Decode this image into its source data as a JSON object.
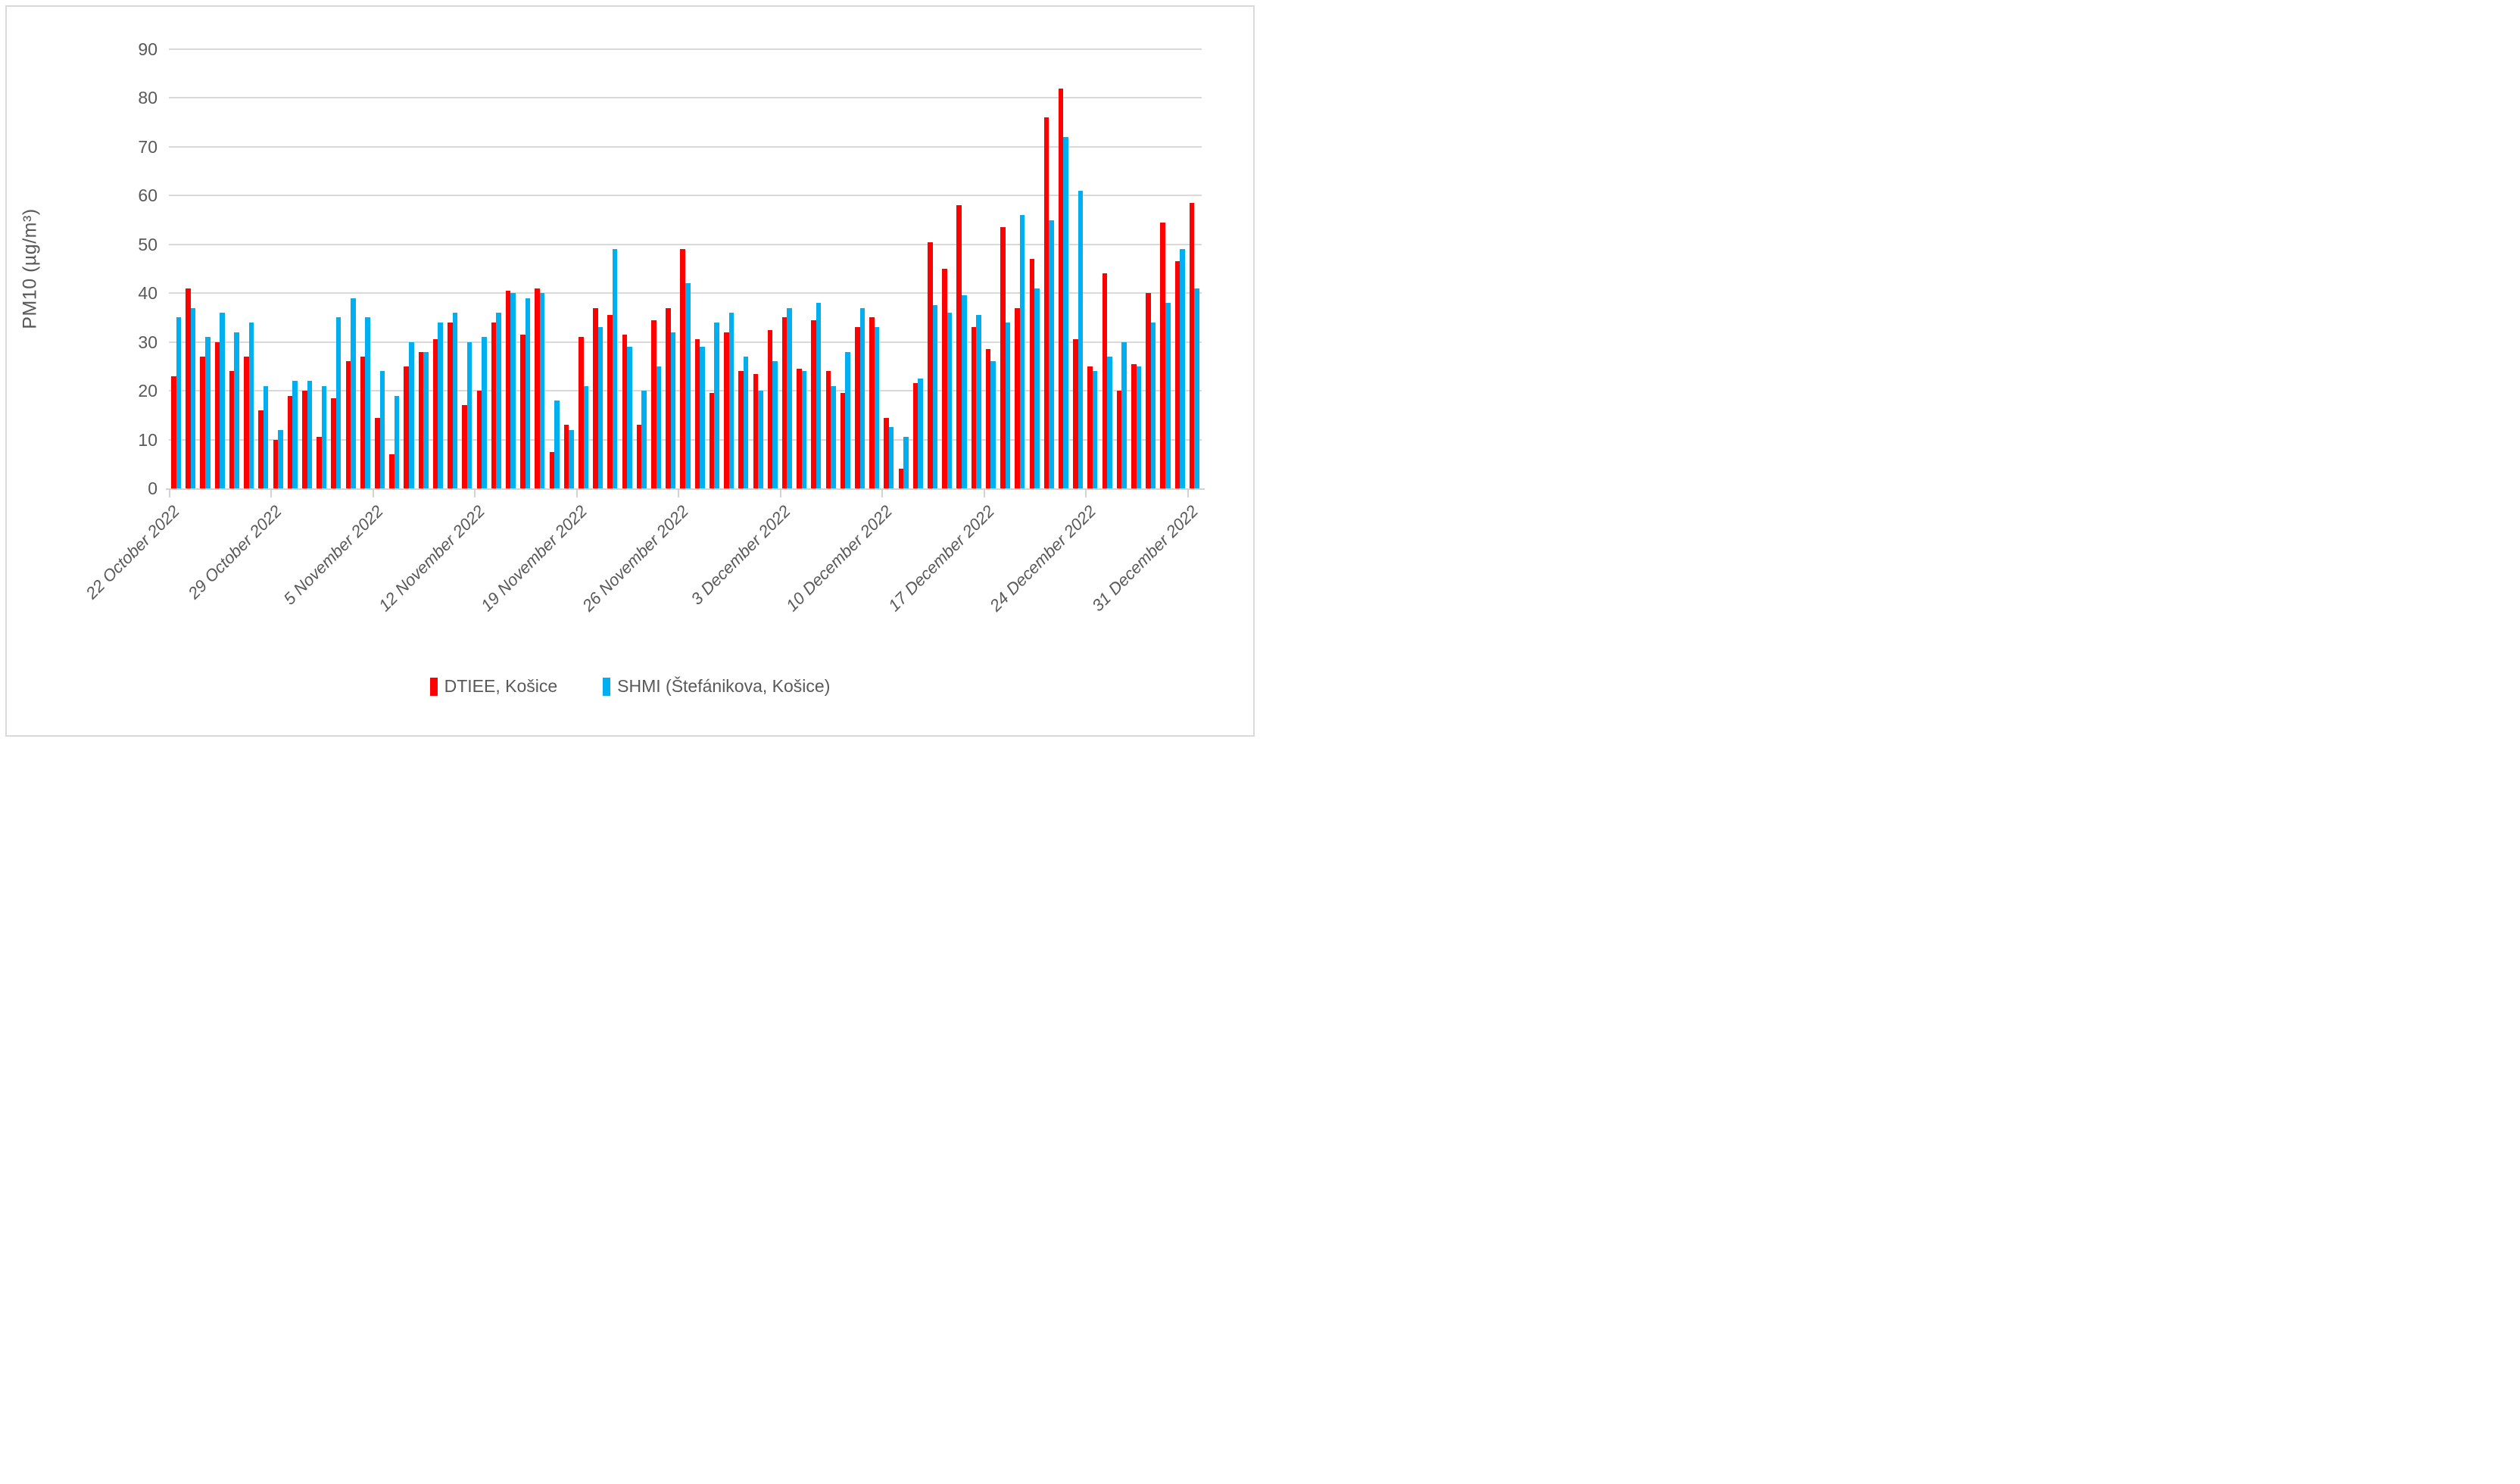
{
  "figure": {
    "background": "#ffffff",
    "border_color": "#d9d9d9",
    "gridline_color": "#d9d9d9",
    "axis_color": "#d2d2d2",
    "text_color": "#595959"
  },
  "chart_data": {
    "type": "bar",
    "title": "",
    "xlabel": "",
    "ylabel": "PM10 (µg/m³)",
    "ylim": [
      0,
      90
    ],
    "y_ticks": [
      0,
      10,
      20,
      30,
      40,
      50,
      60,
      70,
      80,
      90
    ],
    "grid": "horizontal",
    "legend_position": "bottom-center",
    "frequency": "daily",
    "start_date": "22 October 2022",
    "end_date": "31 December 2022",
    "x_tick_labels": [
      "22 October 2022",
      "29 October 2022",
      "5 November 2022",
      "12 November 2022",
      "19 November 2022",
      "26 November 2022",
      "3 December 2022",
      "10 December 2022",
      "17 December 2022",
      "24 December 2022",
      "31 December 2022"
    ],
    "x_tick_interval_days": 7,
    "series": [
      {
        "name": "DTIEE, Košice",
        "color": "#fe0000",
        "values": [
          23,
          41,
          27,
          30,
          24,
          27,
          16,
          10,
          19,
          20,
          10.5,
          18.5,
          26,
          27,
          14.5,
          7,
          25,
          28,
          30.5,
          34,
          17,
          20,
          34,
          40.5,
          31.5,
          41,
          7.5,
          13,
          31,
          37,
          35.5,
          31.5,
          13,
          34.5,
          37,
          49,
          30.5,
          19.5,
          32,
          24,
          23.5,
          32.5,
          35,
          24.5,
          34.5,
          24,
          19.5,
          33,
          35,
          14.5,
          4,
          21.5,
          50.5,
          45,
          58,
          33,
          28.5,
          53.5,
          37,
          47,
          76,
          82,
          30.5,
          25,
          44,
          20,
          25.5,
          40,
          54.5,
          46.5,
          58.5
        ]
      },
      {
        "name": "SHMI (Štefánikova, Košice)",
        "color": "#00afef",
        "values": [
          35,
          37,
          31,
          36,
          32,
          34,
          21,
          12,
          22,
          22,
          21,
          35,
          39,
          35,
          24,
          19,
          30,
          28,
          34,
          36,
          30,
          31,
          36,
          40,
          39,
          40,
          18,
          12,
          21,
          33,
          49,
          29,
          20,
          25,
          32,
          42,
          29,
          34,
          36,
          27,
          20,
          26,
          37,
          24,
          38,
          21,
          28,
          37,
          33,
          12.5,
          10.5,
          22.5,
          37.5,
          36,
          39.5,
          35.5,
          26,
          34,
          56,
          41,
          55,
          72,
          61,
          24,
          27,
          30,
          25,
          34,
          38,
          49,
          41
        ]
      }
    ]
  }
}
